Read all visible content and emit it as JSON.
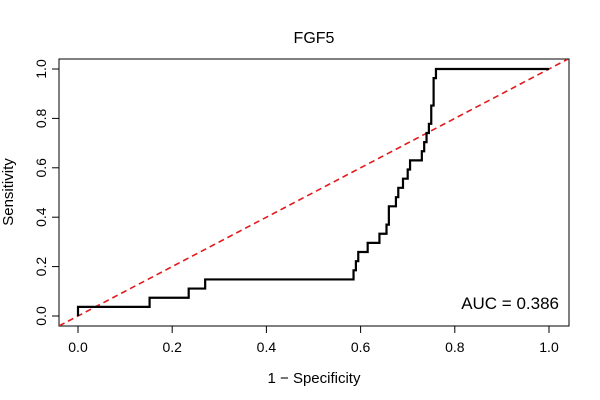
{
  "chart_data": {
    "type": "line",
    "title": "FGF5",
    "xlabel": "1 − Specificity",
    "ylabel": "Sensitivity",
    "xlim": [
      0,
      1
    ],
    "ylim": [
      0,
      1
    ],
    "x_ticks": [
      "0.0",
      "0.2",
      "0.4",
      "0.6",
      "0.8",
      "1.0"
    ],
    "y_ticks": [
      "0.0",
      "0.2",
      "0.4",
      "0.6",
      "0.8",
      "1.0"
    ],
    "annotation": "AUC = 0.386",
    "series": [
      {
        "name": "ROC curve",
        "color": "#000000",
        "style": "solid",
        "points": [
          [
            0.0,
            0.0
          ],
          [
            0.0,
            0.037
          ],
          [
            0.152,
            0.037
          ],
          [
            0.152,
            0.074
          ],
          [
            0.235,
            0.074
          ],
          [
            0.235,
            0.111
          ],
          [
            0.27,
            0.111
          ],
          [
            0.27,
            0.148
          ],
          [
            0.585,
            0.148
          ],
          [
            0.585,
            0.185
          ],
          [
            0.59,
            0.185
          ],
          [
            0.59,
            0.222
          ],
          [
            0.595,
            0.222
          ],
          [
            0.595,
            0.259
          ],
          [
            0.615,
            0.259
          ],
          [
            0.615,
            0.296
          ],
          [
            0.64,
            0.296
          ],
          [
            0.64,
            0.333
          ],
          [
            0.655,
            0.333
          ],
          [
            0.655,
            0.37
          ],
          [
            0.66,
            0.37
          ],
          [
            0.66,
            0.444
          ],
          [
            0.675,
            0.444
          ],
          [
            0.675,
            0.481
          ],
          [
            0.68,
            0.481
          ],
          [
            0.68,
            0.519
          ],
          [
            0.69,
            0.519
          ],
          [
            0.69,
            0.556
          ],
          [
            0.7,
            0.556
          ],
          [
            0.7,
            0.593
          ],
          [
            0.705,
            0.593
          ],
          [
            0.705,
            0.63
          ],
          [
            0.73,
            0.63
          ],
          [
            0.73,
            0.667
          ],
          [
            0.735,
            0.667
          ],
          [
            0.735,
            0.704
          ],
          [
            0.74,
            0.704
          ],
          [
            0.74,
            0.741
          ],
          [
            0.745,
            0.741
          ],
          [
            0.745,
            0.778
          ],
          [
            0.75,
            0.778
          ],
          [
            0.75,
            0.852
          ],
          [
            0.755,
            0.852
          ],
          [
            0.755,
            0.963
          ],
          [
            0.76,
            0.963
          ],
          [
            0.76,
            1.0
          ],
          [
            1.0,
            1.0
          ]
        ]
      },
      {
        "name": "Reference diagonal",
        "color": "#e31a1c",
        "style": "dashed",
        "points": [
          [
            -0.04,
            -0.04
          ],
          [
            1.04,
            1.04
          ]
        ]
      }
    ]
  }
}
